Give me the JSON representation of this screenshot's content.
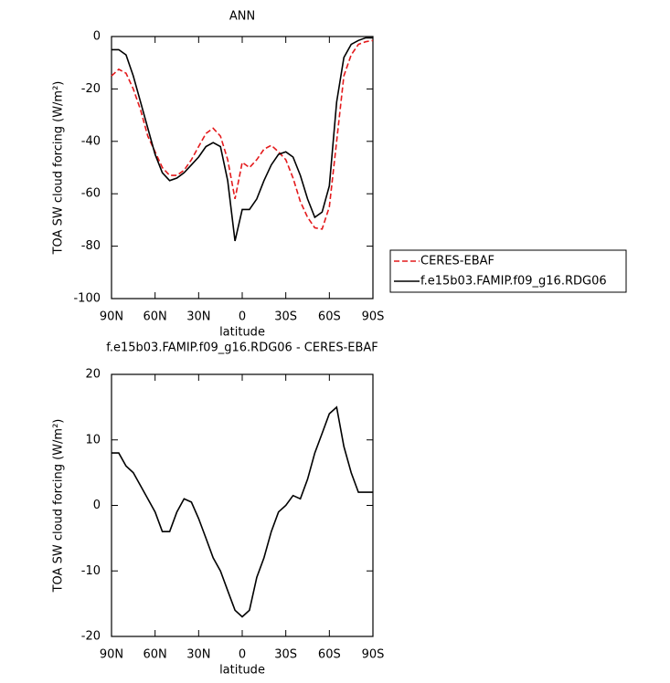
{
  "chart_data": [
    {
      "type": "line",
      "title": "ANN",
      "xlabel": "latitude",
      "ylabel": "TOA SW cloud forcing (W/m²)",
      "x": [
        90,
        85,
        80,
        75,
        70,
        65,
        60,
        55,
        50,
        45,
        40,
        35,
        30,
        25,
        20,
        15,
        10,
        5,
        0,
        -5,
        -10,
        -15,
        -20,
        -25,
        -30,
        -35,
        -40,
        -45,
        -50,
        -55,
        -60,
        -65,
        -70,
        -75,
        -80,
        -85,
        -90
      ],
      "xlim": [
        90,
        -90
      ],
      "xticks": [
        {
          "value": 90,
          "label": "90N"
        },
        {
          "value": 60,
          "label": "60N"
        },
        {
          "value": 30,
          "label": "30N"
        },
        0,
        {
          "value": -30,
          "label": "30S"
        },
        {
          "value": -60,
          "label": "60S"
        },
        {
          "value": -90,
          "label": "90S"
        }
      ],
      "ylim": [
        -100,
        0
      ],
      "yticks": [
        -100,
        -80,
        -60,
        -40,
        -20,
        0
      ],
      "legend": "outside-right",
      "series": [
        {
          "name": "CERES-EBAF",
          "color": "#e41a1c",
          "linestyle": "dashed",
          "values": [
            -15,
            -12.5,
            -14,
            -20,
            -28,
            -38,
            -44,
            -50,
            -53,
            -53,
            -51,
            -47,
            -42,
            -37,
            -35,
            -38,
            -47,
            -62,
            -48,
            -50,
            -47,
            -43,
            -41.5,
            -44,
            -47,
            -54,
            -63,
            -69,
            -73,
            -73.5,
            -65,
            -40,
            -15,
            -7,
            -3,
            -2,
            -1.5
          ]
        },
        {
          "name": "f.e15b03.FAMIP.f09_g16.RDG06",
          "color": "#000000",
          "linestyle": "solid",
          "values": [
            -5,
            -5,
            -7,
            -15,
            -25,
            -35,
            -45,
            -52,
            -55,
            -54,
            -52,
            -49,
            -46,
            -42,
            -40.5,
            -42,
            -55,
            -78,
            -66,
            -66,
            -62,
            -55,
            -49,
            -45,
            -44,
            -46,
            -53,
            -62,
            -69,
            -67,
            -57,
            -25,
            -8,
            -3,
            -1.5,
            -0.5,
            -0.5
          ]
        }
      ]
    },
    {
      "type": "line",
      "title": "f.e15b03.FAMIP.f09_g16.RDG06 - CERES-EBAF",
      "xlabel": "latitude",
      "ylabel": "TOA SW cloud forcing (W/m²)",
      "x": [
        90,
        85,
        80,
        75,
        70,
        65,
        60,
        55,
        50,
        45,
        40,
        35,
        30,
        25,
        20,
        15,
        10,
        5,
        0,
        -5,
        -10,
        -15,
        -20,
        -25,
        -30,
        -35,
        -40,
        -45,
        -50,
        -55,
        -60,
        -65,
        -70,
        -75,
        -80,
        -85,
        -90
      ],
      "xlim": [
        90,
        -90
      ],
      "xticks": [
        {
          "value": 90,
          "label": "90N"
        },
        {
          "value": 60,
          "label": "60N"
        },
        {
          "value": 30,
          "label": "30N"
        },
        0,
        {
          "value": -30,
          "label": "30S"
        },
        {
          "value": -60,
          "label": "60S"
        },
        {
          "value": -90,
          "label": "90S"
        }
      ],
      "ylim": [
        -20,
        20
      ],
      "yticks": [
        -20,
        -10,
        0,
        10,
        20
      ],
      "series": [
        {
          "color": "#000000",
          "linestyle": "solid",
          "values": [
            8,
            8,
            6,
            5,
            3,
            1,
            -1,
            -4,
            -4,
            -1,
            1,
            0.5,
            -2,
            -5,
            -8,
            -10,
            -13,
            -16,
            -17,
            -16,
            -11,
            -8,
            -4,
            -1,
            0,
            1.5,
            1,
            4,
            8,
            11,
            14,
            15,
            9,
            5,
            2,
            2,
            2
          ]
        }
      ]
    }
  ]
}
